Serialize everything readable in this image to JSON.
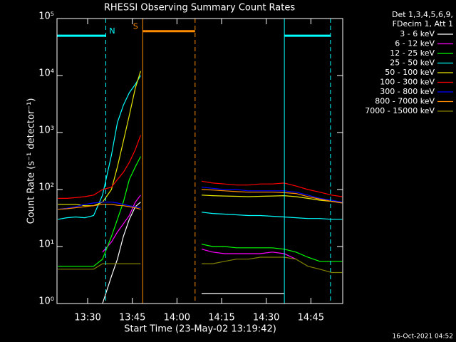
{
  "chart_data": {
    "type": "line",
    "title": "RHESSI Observing Summary Count Rates",
    "xlabel": "Start Time (23-May-02 13:19:42)",
    "ylabel": "Count Rate (s⁻¹ detector⁻¹)",
    "legend_header": [
      "Det 1,3,4,5,6,9,",
      "FDecim 1, Att 1"
    ],
    "footer": "16-Oct-2021 04:52",
    "log_y": true,
    "xlim": [
      19.7,
      115.7
    ],
    "ylim": [
      1,
      100000
    ],
    "xticks": [
      {
        "value": 30,
        "label": "13:30"
      },
      {
        "value": 45,
        "label": "13:45"
      },
      {
        "value": 60,
        "label": "14:00"
      },
      {
        "value": 75,
        "label": "14:15"
      },
      {
        "value": 90,
        "label": "14:30"
      },
      {
        "value": 105,
        "label": "14:45"
      }
    ],
    "yticks": [
      {
        "value": 1,
        "label": "10⁰"
      },
      {
        "value": 10,
        "label": "10¹"
      },
      {
        "value": 100,
        "label": "10²"
      },
      {
        "value": 1000,
        "label": "10³"
      },
      {
        "value": 10000,
        "label": "10⁴"
      },
      {
        "value": 100000,
        "label": "10⁵"
      }
    ],
    "x": [
      20,
      23,
      26,
      29,
      32,
      35,
      38,
      40,
      42,
      44,
      46,
      47.8,
      58,
      68.3,
      72,
      76,
      80,
      84,
      88,
      92,
      96,
      100,
      104,
      108,
      112,
      115.5
    ],
    "series": [
      {
        "name": "3 - 6 keV",
        "color": "#ffffff",
        "values": [
          null,
          null,
          null,
          null,
          null,
          1,
          3,
          6,
          15,
          30,
          50,
          60,
          null,
          1.5,
          1.5,
          1.5,
          1.5,
          1.5,
          1.5,
          1.5,
          1.5,
          null,
          null,
          null,
          null,
          null
        ]
      },
      {
        "name": "6 - 12 keV",
        "color": "#ff00ff",
        "values": [
          null,
          null,
          null,
          null,
          null,
          8,
          12,
          18,
          25,
          35,
          60,
          80,
          null,
          9,
          8,
          7.5,
          7.5,
          7.5,
          7.5,
          8,
          7.5,
          6,
          null,
          null,
          null,
          null
        ]
      },
      {
        "name": "12 - 25 keV",
        "color": "#00ff00",
        "values": [
          4.5,
          4.5,
          4.5,
          4.5,
          4.5,
          6,
          15,
          30,
          60,
          150,
          250,
          380,
          null,
          11,
          10,
          10,
          9.5,
          9.5,
          9.5,
          9.5,
          9,
          8,
          6.5,
          5.5,
          5.5,
          5.5
        ]
      },
      {
        "name": "25 - 50 keV",
        "color": "#00ffff",
        "values": [
          30,
          32,
          33,
          32,
          35,
          80,
          400,
          1500,
          3000,
          5000,
          7000,
          10000,
          null,
          40,
          38,
          37,
          36,
          35,
          35,
          34,
          33,
          32,
          31,
          31,
          30,
          30
        ]
      },
      {
        "name": "50 - 100 keV",
        "color": "#e6e600",
        "values": [
          55,
          55,
          55,
          52,
          52,
          60,
          100,
          250,
          700,
          2000,
          6000,
          12000,
          null,
          80,
          78,
          77,
          76,
          75,
          76,
          77,
          78,
          75,
          70,
          65,
          62,
          60
        ]
      },
      {
        "name": "100 - 300 keV",
        "color": "#ff0000",
        "values": [
          70,
          70,
          72,
          75,
          80,
          100,
          110,
          150,
          200,
          300,
          500,
          900,
          null,
          140,
          130,
          125,
          120,
          120,
          125,
          125,
          130,
          115,
          100,
          90,
          80,
          75
        ]
      },
      {
        "name": "300 - 800 keV",
        "color": "#0000ff",
        "values": [
          45,
          47,
          50,
          55,
          58,
          60,
          60,
          58,
          55,
          52,
          50,
          48,
          null,
          110,
          105,
          100,
          100,
          95,
          95,
          95,
          95,
          90,
          80,
          70,
          65,
          60
        ]
      },
      {
        "name": "800 - 7000 keV",
        "color": "#ff8c00",
        "values": [
          45,
          46,
          48,
          50,
          52,
          55,
          55,
          53,
          52,
          50,
          48,
          45,
          null,
          100,
          98,
          95,
          92,
          90,
          90,
          90,
          88,
          85,
          75,
          68,
          62,
          58
        ]
      },
      {
        "name": "7000 - 15000 keV",
        "color": "#808000",
        "values": [
          4,
          4,
          4,
          4,
          4,
          5,
          5,
          5,
          5,
          5,
          5,
          5,
          null,
          5,
          5,
          5.5,
          6,
          6,
          6.5,
          6.5,
          6.5,
          6,
          4.5,
          4,
          3.5,
          3.5
        ]
      }
    ],
    "intervals": [
      {
        "label": "N",
        "color": "#00ffff",
        "start": 19.7,
        "end": 36.1,
        "level": 50000
      },
      {
        "label": "S",
        "color": "#ff8c00",
        "start": 48.5,
        "end": 66.1,
        "level": 60000
      },
      {
        "color": "#00ffff",
        "start": 96.1,
        "end": 111.6,
        "level": 50000
      }
    ]
  }
}
